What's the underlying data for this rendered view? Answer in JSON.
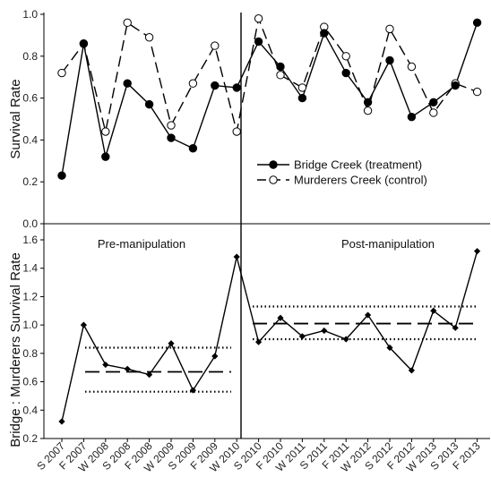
{
  "chart_data": [
    {
      "type": "line",
      "ylabel": "Survival Rate",
      "ylim": [
        0.0,
        1.0
      ],
      "yticks": [
        "0.0",
        "0.2",
        "0.4",
        "0.6",
        "0.8",
        "1.0"
      ],
      "categories": [
        "S 2007",
        "F 2007",
        "W 2008",
        "S 2008",
        "F 2008",
        "W 2009",
        "S 2009",
        "F 2009",
        "W 2010",
        "S 2010",
        "F 2010",
        "W 2011",
        "S 2011",
        "F 2011",
        "W 2012",
        "S 2012",
        "F 2012",
        "W 2013",
        "S 2013",
        "F 2013"
      ],
      "series": [
        {
          "name": "Bridge Creek (treatment)",
          "style": "solid-filled",
          "values": [
            0.23,
            0.86,
            0.32,
            0.67,
            0.57,
            0.41,
            0.36,
            0.66,
            0.65,
            0.87,
            0.75,
            0.6,
            0.91,
            0.72,
            0.58,
            0.78,
            0.51,
            0.58,
            0.66,
            0.96
          ]
        },
        {
          "name": "Murderers Creek (control)",
          "style": "dashed-open",
          "values": [
            0.72,
            0.86,
            0.44,
            0.96,
            0.89,
            0.47,
            0.67,
            0.85,
            0.44,
            0.98,
            0.71,
            0.65,
            0.94,
            0.8,
            0.54,
            0.93,
            0.75,
            0.53,
            0.67,
            0.63
          ]
        }
      ],
      "legend_position": "lower-right",
      "manipulation_line_after": "F 2009"
    },
    {
      "type": "line",
      "ylabel": "Bridge : Murderers Survival Rate",
      "ylim": [
        0.2,
        1.6
      ],
      "yticks": [
        "0.2",
        "0.4",
        "0.6",
        "0.8",
        "1.0",
        "1.2",
        "1.4",
        "1.6"
      ],
      "categories": [
        "S 2007",
        "F 2007",
        "W 2008",
        "S 2008",
        "F 2008",
        "W 2009",
        "S 2009",
        "F 2009",
        "W 2010",
        "S 2010",
        "F 2010",
        "W 2011",
        "S 2011",
        "F 2011",
        "W 2012",
        "S 2012",
        "F 2012",
        "W 2013",
        "S 2013",
        "F 2013"
      ],
      "series": [
        {
          "style": "solid-diamond",
          "values": [
            0.32,
            1.0,
            0.72,
            0.69,
            0.65,
            0.87,
            0.54,
            0.78,
            1.48,
            0.88,
            1.05,
            0.92,
            0.96,
            0.9,
            1.07,
            0.84,
            0.68,
            1.1,
            0.98,
            1.52
          ]
        }
      ],
      "reference_lines": [
        {
          "period": "pre",
          "style": "dashed",
          "value": 0.67
        },
        {
          "period": "pre",
          "style": "dotted",
          "value": 0.84
        },
        {
          "period": "pre",
          "style": "dotted",
          "value": 0.53
        },
        {
          "period": "post",
          "style": "dashed",
          "value": 1.01
        },
        {
          "period": "post",
          "style": "dotted",
          "value": 1.13
        },
        {
          "period": "post",
          "style": "dotted",
          "value": 0.9
        }
      ],
      "annotations": [
        "Pre-manipulation",
        "Post-manipulation"
      ]
    }
  ]
}
